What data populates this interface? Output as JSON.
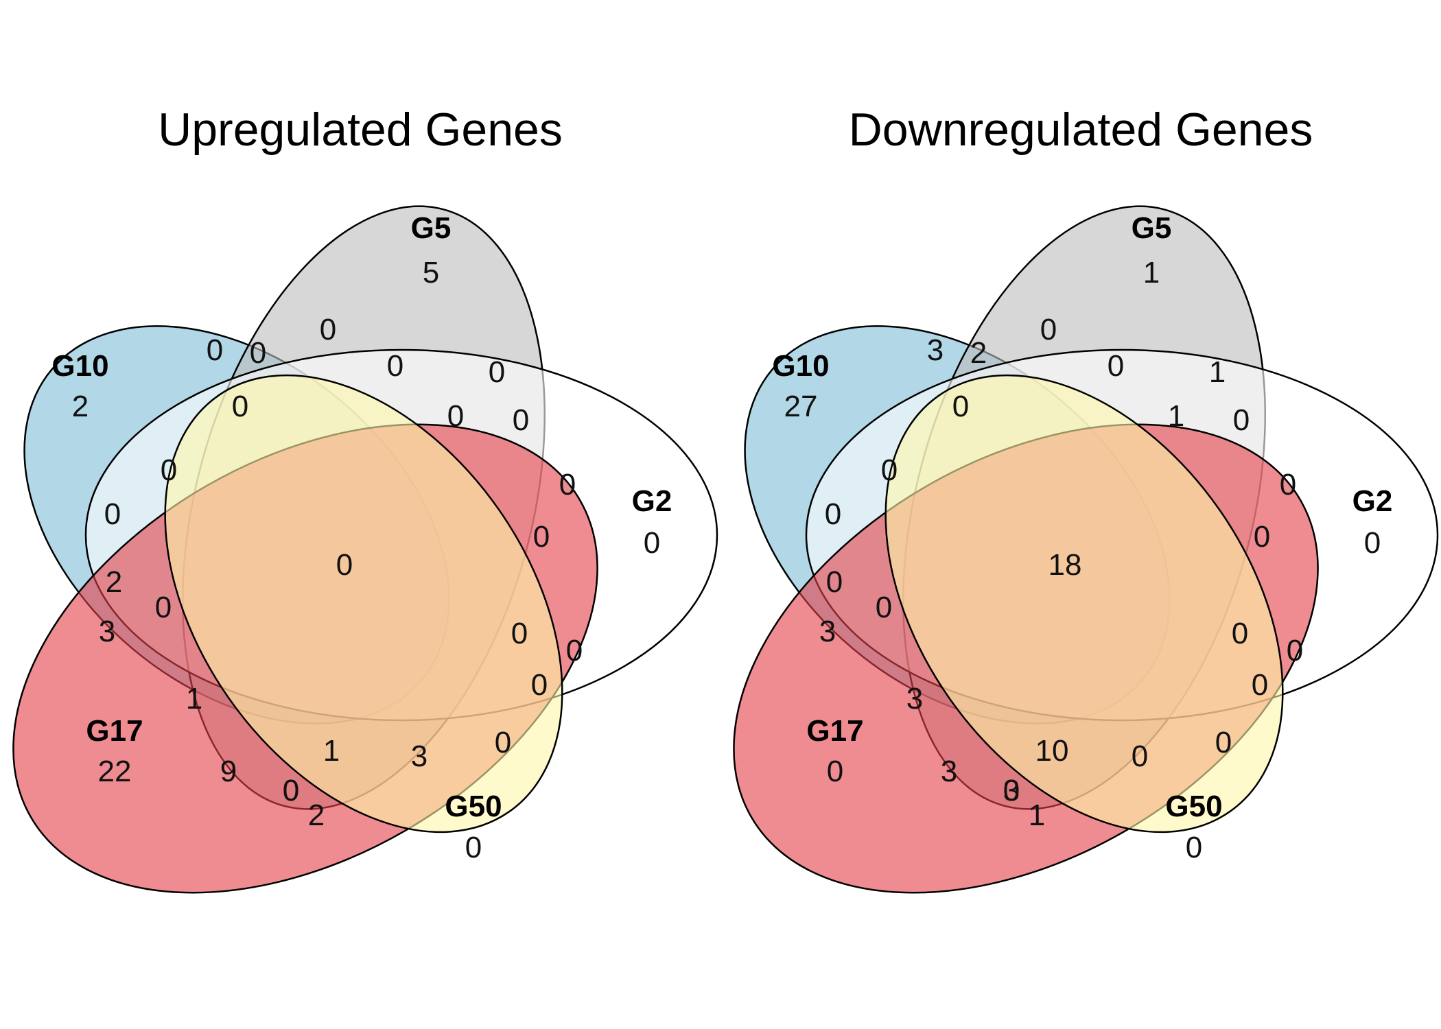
{
  "colors": {
    "G10": "#7fbcd7",
    "G5": "#bdbdbd",
    "G2": "#ffffff",
    "G17": "#e2404a",
    "G50": "#fff6a8"
  },
  "sets": [
    "G10",
    "G5",
    "G2",
    "G17",
    "G50"
  ],
  "panels": [
    {
      "title": "Upregulated Genes",
      "regions": {
        "G5_only": "5",
        "G10_only": "2",
        "G2_only": "0",
        "G17_only": "22",
        "G50_only": "0",
        "center": "0",
        "r1": "0",
        "r2": "0",
        "r3": "0",
        "r4": "0",
        "r5": "0",
        "r6": "0",
        "r7": "0",
        "r8": "0",
        "r9": "0",
        "r10": "0",
        "r11": "0",
        "r12": "0",
        "r13": "0",
        "r14": "2",
        "r15": "0",
        "r16": "3",
        "r17": "0",
        "r18": "0",
        "r19": "0",
        "r20": "0",
        "r21": "1",
        "r22": "1",
        "r23": "3",
        "r24": "0",
        "r25": "9",
        "r26": "0",
        "r27": "2"
      }
    },
    {
      "title": "Downregulated Genes",
      "regions": {
        "G5_only": "1",
        "G10_only": "27",
        "G2_only": "0",
        "G17_only": "0",
        "G50_only": "0",
        "center": "18",
        "r1": "3",
        "r2": "2",
        "r3": "0",
        "r4": "0",
        "r5": "1",
        "r6": "0",
        "r7": "1",
        "r8": "0",
        "r9": "0",
        "r10": "0",
        "r11": "0",
        "r12": "0",
        "r13": "0",
        "r14": "0",
        "r15": "0",
        "r16": "3",
        "r17": "0",
        "r18": "0",
        "r19": "0",
        "r20": "0",
        "r21": "3",
        "r22": "10",
        "r23": "0",
        "r24": "3",
        "r25": "3",
        "r26": "3",
        "r27": "1"
      }
    }
  ]
}
